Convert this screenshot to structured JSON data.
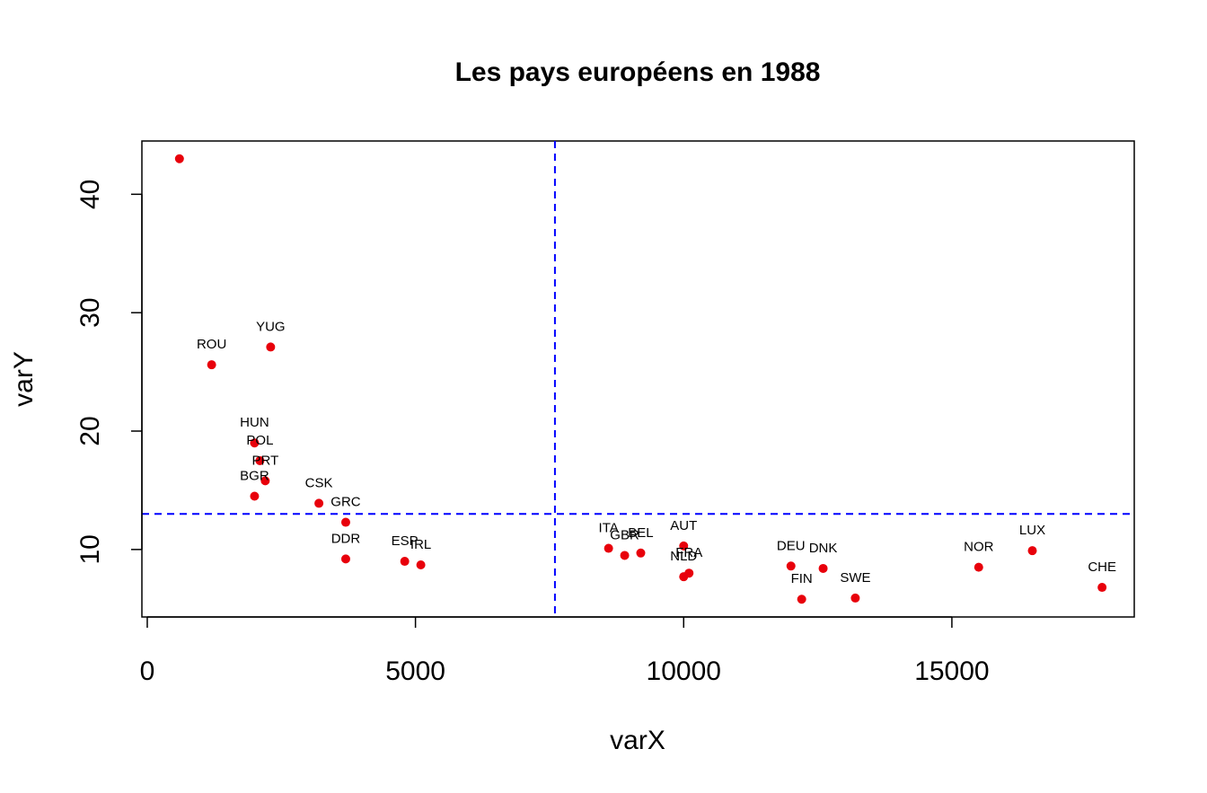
{
  "chart_data": {
    "type": "scatter",
    "title": "Les pays européens en 1988",
    "xlabel": "varX",
    "ylabel": "varY",
    "xlim": [
      -100,
      18400
    ],
    "ylim": [
      4.3,
      44.5
    ],
    "x_ticks": [
      0,
      5000,
      10000,
      15000
    ],
    "y_ticks": [
      10,
      20,
      30,
      40
    ],
    "grid": false,
    "point_color": "#e8000b",
    "reference_line_color": "#0000ff",
    "reference_lines": {
      "vertical_x": 7600,
      "horizontal_y": 13
    },
    "points": [
      {
        "label": "",
        "x": 600,
        "y": 43
      },
      {
        "label": "ROU",
        "x": 1200,
        "y": 25.6
      },
      {
        "label": "YUG",
        "x": 2300,
        "y": 27.1
      },
      {
        "label": "HUN",
        "x": 2000,
        "y": 19
      },
      {
        "label": "POL",
        "x": 2100,
        "y": 17.5
      },
      {
        "label": "PRT",
        "x": 2200,
        "y": 15.8
      },
      {
        "label": "BGR",
        "x": 2000,
        "y": 14.5
      },
      {
        "label": "CSK",
        "x": 3200,
        "y": 13.9
      },
      {
        "label": "GRC",
        "x": 3700,
        "y": 12.3
      },
      {
        "label": "DDR",
        "x": 3700,
        "y": 9.2
      },
      {
        "label": "ESP",
        "x": 4800,
        "y": 9
      },
      {
        "label": "IRL",
        "x": 5100,
        "y": 8.7
      },
      {
        "label": "ITA",
        "x": 8600,
        "y": 10.1
      },
      {
        "label": "GBR",
        "x": 8900,
        "y": 9.5
      },
      {
        "label": "BEL",
        "x": 9200,
        "y": 9.7
      },
      {
        "label": "AUT",
        "x": 10000,
        "y": 10.3
      },
      {
        "label": "FRA",
        "x": 10100,
        "y": 8
      },
      {
        "label": "NLD",
        "x": 10000,
        "y": 7.7
      },
      {
        "label": "DEU",
        "x": 12000,
        "y": 8.6
      },
      {
        "label": "DNK",
        "x": 12600,
        "y": 8.4
      },
      {
        "label": "FIN",
        "x": 12200,
        "y": 5.8
      },
      {
        "label": "SWE",
        "x": 13200,
        "y": 5.9
      },
      {
        "label": "NOR",
        "x": 15500,
        "y": 8.5
      },
      {
        "label": "LUX",
        "x": 16500,
        "y": 9.9
      },
      {
        "label": "CHE",
        "x": 17800,
        "y": 6.8
      }
    ]
  }
}
